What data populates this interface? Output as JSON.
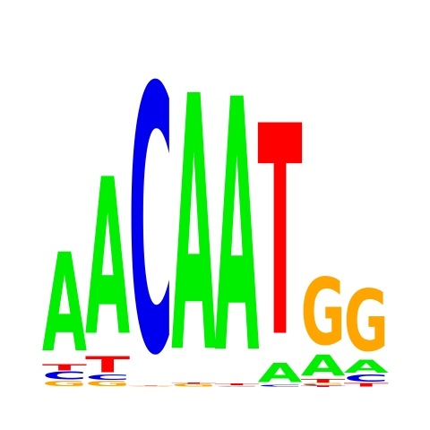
{
  "colors": {
    "A": "#00ee00",
    "C": "#0000ee",
    "G": "#ffa500",
    "T": "#ff0000"
  },
  "chart_data": {
    "type": "sequence-logo",
    "ylim": [
      0,
      2
    ],
    "columns": [
      {
        "position": 1,
        "letters": [
          {
            "base": "G",
            "bits": 0.03
          },
          {
            "base": "C",
            "bits": 0.045
          },
          {
            "base": "T",
            "bits": 0.035
          },
          {
            "base": "A",
            "bits": 0.57
          }
        ]
      },
      {
        "position": 2,
        "letters": [
          {
            "base": "G",
            "bits": 0.03
          },
          {
            "base": "C",
            "bits": 0.03
          },
          {
            "base": "T",
            "bits": 0.095
          },
          {
            "base": "A",
            "bits": 0.905
          }
        ]
      },
      {
        "position": 3,
        "letters": [
          {
            "base": "G",
            "bits": 0.003
          },
          {
            "base": "T",
            "bits": 0.003
          },
          {
            "base": "C",
            "bits": 1.535
          }
        ]
      },
      {
        "position": 4,
        "letters": [
          {
            "base": "G",
            "bits": 0.015
          },
          {
            "base": "T",
            "bits": 0.005
          },
          {
            "base": "A",
            "bits": 1.475
          }
        ]
      },
      {
        "position": 5,
        "letters": [
          {
            "base": "C",
            "bits": 0.004
          },
          {
            "base": "G",
            "bits": 0.004
          },
          {
            "base": "T",
            "bits": 0.01
          },
          {
            "base": "A",
            "bits": 1.46
          }
        ]
      },
      {
        "position": 6,
        "letters": [
          {
            "base": "C",
            "bits": 0.01
          },
          {
            "base": "A",
            "bits": 0.11
          },
          {
            "base": "T",
            "bits": 1.215
          }
        ]
      },
      {
        "position": 7,
        "letters": [
          {
            "base": "T",
            "bits": 0.005
          },
          {
            "base": "C",
            "bits": 0.005
          },
          {
            "base": "G",
            "bits": 0.01
          },
          {
            "base": "T",
            "bits": 0.02
          },
          {
            "base": "A",
            "bits": 0.12
          },
          {
            "base": "G",
            "bits": 0.385
          }
        ]
      },
      {
        "position": 8,
        "letters": [
          {
            "base": "T",
            "bits": 0.02
          },
          {
            "base": "C",
            "bits": 0.04
          },
          {
            "base": "A",
            "bits": 0.075
          },
          {
            "base": "G",
            "bits": 0.355
          }
        ]
      }
    ]
  }
}
